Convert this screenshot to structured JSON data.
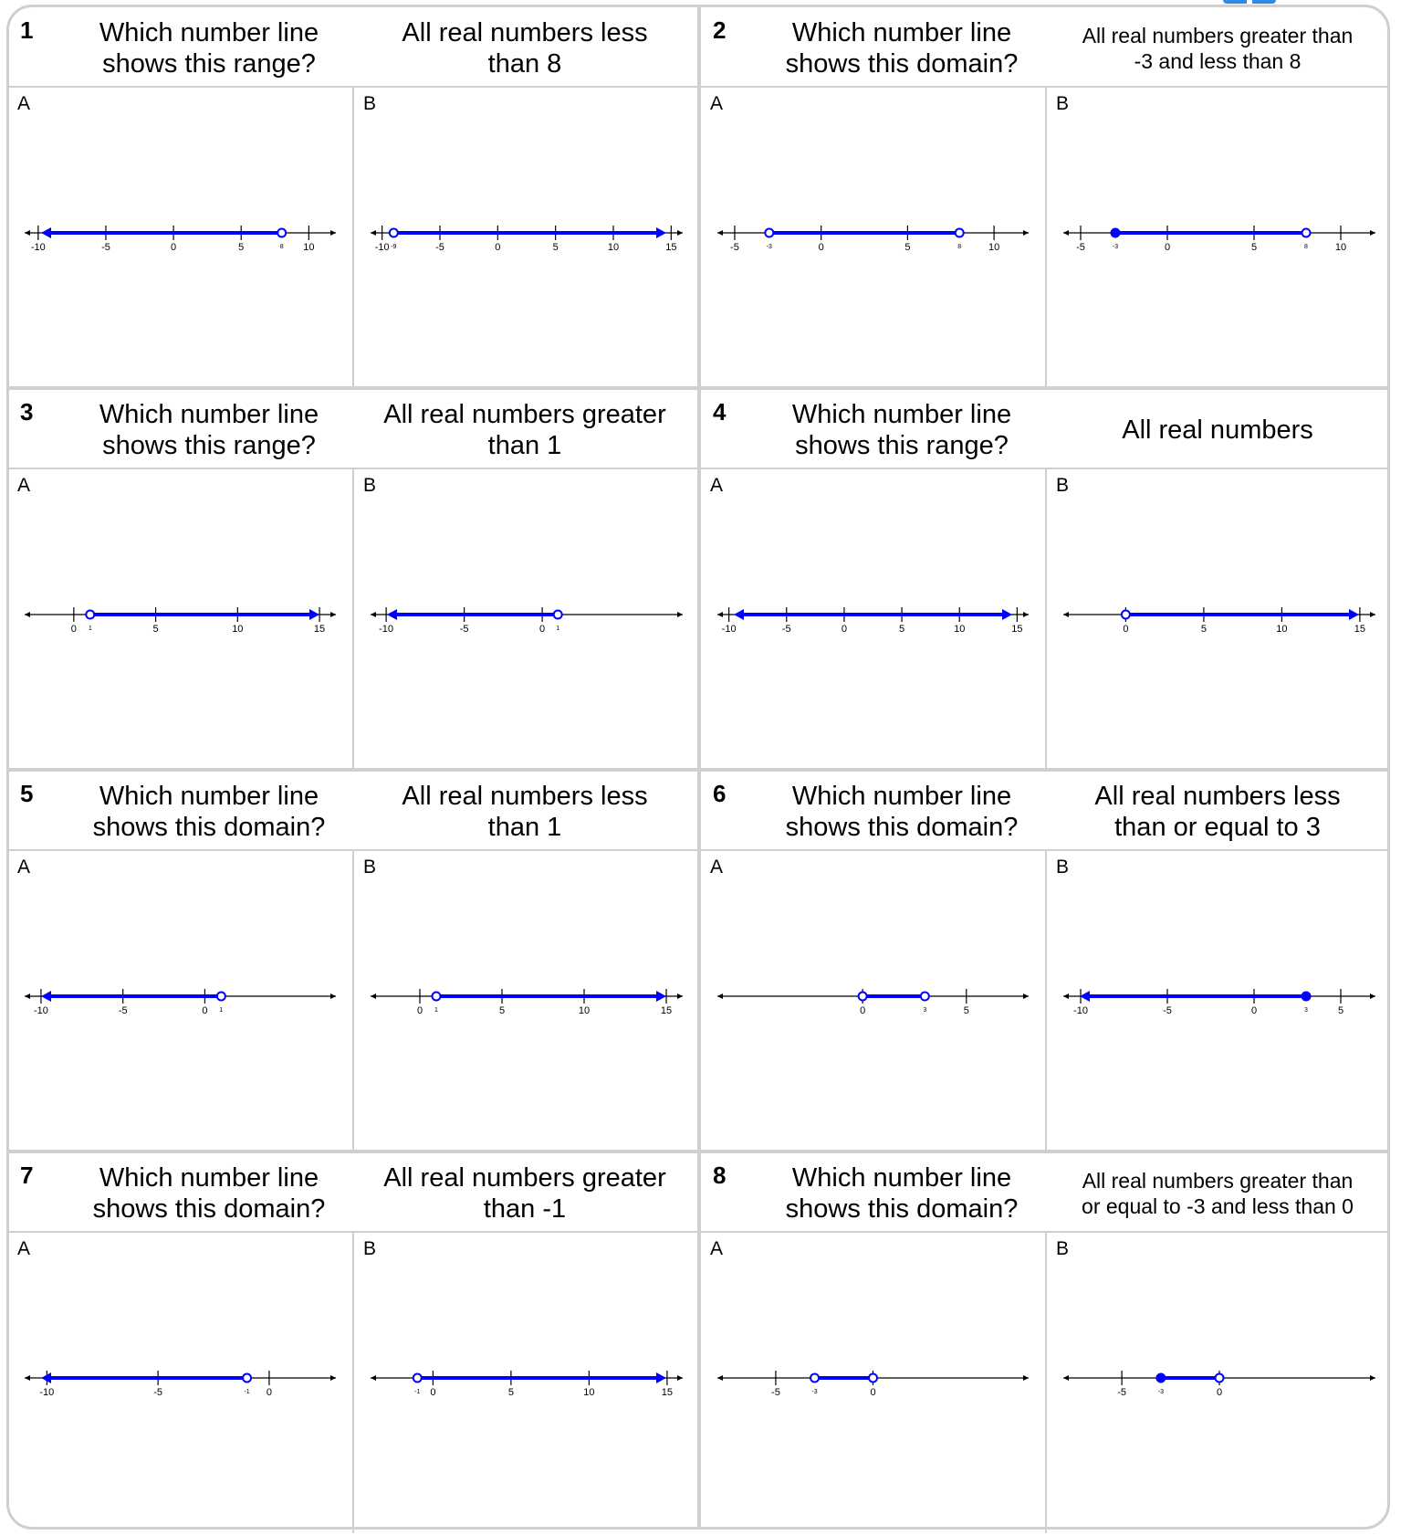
{
  "colors": {
    "line": "#0000ff",
    "axis": "#000000",
    "border": "#cfcfcf"
  },
  "questions": [
    {
      "num": "1",
      "prompt": "Which number line\nshows this range?",
      "desc": "All real numbers less\nthan 8",
      "desc_small": false,
      "options": [
        {
          "label": "A",
          "ticks": [
            -10,
            -5,
            0,
            5,
            10
          ],
          "xmin": -11,
          "xmax": 12,
          "seg": {
            "from": null,
            "to": 8,
            "from_closed": null,
            "to_closed": false
          },
          "extra": [
            {
              "v": 8,
              "t": "8"
            }
          ]
        },
        {
          "label": "B",
          "ticks": [
            -10,
            -5,
            0,
            5,
            10,
            15
          ],
          "xmin": -11,
          "xmax": 16,
          "seg": {
            "from": -9,
            "to": null,
            "from_closed": false,
            "to_closed": null
          },
          "extra": [
            {
              "v": -9,
              "t": "-9"
            }
          ]
        }
      ]
    },
    {
      "num": "2",
      "prompt": "Which number line\nshows this domain?",
      "desc": "All real numbers greater than\n-3 and less than 8",
      "desc_small": true,
      "options": [
        {
          "label": "A",
          "ticks": [
            -5,
            0,
            5,
            10
          ],
          "xmin": -6,
          "xmax": 12,
          "seg": {
            "from": -3,
            "to": 8,
            "from_closed": false,
            "to_closed": false
          },
          "extra": [
            {
              "v": -3,
              "t": "-3"
            },
            {
              "v": 8,
              "t": "8"
            }
          ]
        },
        {
          "label": "B",
          "ticks": [
            -5,
            0,
            5,
            10
          ],
          "xmin": -6,
          "xmax": 12,
          "seg": {
            "from": -3,
            "to": 8,
            "from_closed": true,
            "to_closed": false
          },
          "extra": [
            {
              "v": -3,
              "t": "-3"
            },
            {
              "v": 8,
              "t": "8"
            }
          ]
        }
      ]
    },
    {
      "num": "3",
      "prompt": "Which number line\nshows this range?",
      "desc": "All real numbers greater\nthan 1",
      "desc_small": false,
      "options": [
        {
          "label": "A",
          "ticks": [
            0,
            5,
            10,
            15
          ],
          "xmin": -3,
          "xmax": 16,
          "seg": {
            "from": 1,
            "to": null,
            "from_closed": false,
            "to_closed": null
          },
          "extra": [
            {
              "v": 1,
              "t": "1"
            }
          ]
        },
        {
          "label": "B",
          "ticks": [
            -10,
            -5,
            0
          ],
          "xmin": -11,
          "xmax": 9,
          "seg": {
            "from": null,
            "to": 1,
            "from_closed": null,
            "to_closed": false
          },
          "extra": [
            {
              "v": 1,
              "t": "1"
            }
          ]
        }
      ]
    },
    {
      "num": "4",
      "prompt": "Which number line\nshows this range?",
      "desc": "All real numbers",
      "desc_small": false,
      "options": [
        {
          "label": "A",
          "ticks": [
            -10,
            -5,
            0,
            5,
            10,
            15
          ],
          "xmin": -11,
          "xmax": 16,
          "seg": {
            "from": null,
            "to": null,
            "from_closed": null,
            "to_closed": null
          },
          "extra": []
        },
        {
          "label": "B",
          "ticks": [
            0,
            5,
            10,
            15
          ],
          "xmin": -4,
          "xmax": 16,
          "seg": {
            "from": 0,
            "to": null,
            "from_closed": false,
            "to_closed": null
          },
          "extra": []
        }
      ]
    },
    {
      "num": "5",
      "prompt": "Which number line\nshows this domain?",
      "desc": "All real numbers less\nthan 1",
      "desc_small": false,
      "options": [
        {
          "label": "A",
          "ticks": [
            -10,
            -5,
            0
          ],
          "xmin": -11,
          "xmax": 8,
          "seg": {
            "from": null,
            "to": 1,
            "from_closed": null,
            "to_closed": false
          },
          "extra": [
            {
              "v": 1,
              "t": "1"
            }
          ]
        },
        {
          "label": "B",
          "ticks": [
            0,
            5,
            10,
            15
          ],
          "xmin": -3,
          "xmax": 16,
          "seg": {
            "from": 1,
            "to": null,
            "from_closed": false,
            "to_closed": null
          },
          "extra": [
            {
              "v": 1,
              "t": "1"
            }
          ]
        }
      ]
    },
    {
      "num": "6",
      "prompt": "Which number line\nshows this domain?",
      "desc": "All real numbers less\nthan or equal to 3",
      "desc_small": false,
      "options": [
        {
          "label": "A",
          "ticks": [
            0,
            5
          ],
          "xmin": -7,
          "xmax": 8,
          "seg": {
            "from": 0,
            "to": 3,
            "from_closed": false,
            "to_closed": false
          },
          "extra": [
            {
              "v": 3,
              "t": "3"
            }
          ]
        },
        {
          "label": "B",
          "ticks": [
            -10,
            -5,
            0,
            5
          ],
          "xmin": -11,
          "xmax": 7,
          "seg": {
            "from": null,
            "to": 3,
            "from_closed": null,
            "to_closed": true
          },
          "extra": [
            {
              "v": 3,
              "t": "3"
            }
          ]
        }
      ]
    },
    {
      "num": "7",
      "prompt": "Which number line\nshows this domain?",
      "desc": "All real numbers greater\nthan -1",
      "desc_small": false,
      "options": [
        {
          "label": "A",
          "ticks": [
            -10,
            -5,
            0
          ],
          "xmin": -11,
          "xmax": 3,
          "seg": {
            "from": null,
            "to": -1,
            "from_closed": null,
            "to_closed": false
          },
          "extra": [
            {
              "v": -1,
              "t": "-1"
            }
          ]
        },
        {
          "label": "B",
          "ticks": [
            0,
            5,
            10,
            15
          ],
          "xmin": -4,
          "xmax": 16,
          "seg": {
            "from": -1,
            "to": null,
            "from_closed": false,
            "to_closed": null
          },
          "extra": [
            {
              "v": -1,
              "t": "-1"
            }
          ]
        }
      ]
    },
    {
      "num": "8",
      "prompt": "Which number line\nshows this domain?",
      "desc": "All real numbers greater than\nor equal to -3 and less than 0",
      "desc_small": true,
      "options": [
        {
          "label": "A",
          "ticks": [
            -5,
            0
          ],
          "xmin": -8,
          "xmax": 8,
          "seg": {
            "from": -3,
            "to": 0,
            "from_closed": false,
            "to_closed": false
          },
          "extra": [
            {
              "v": -3,
              "t": "-3"
            }
          ]
        },
        {
          "label": "B",
          "ticks": [
            -5,
            0
          ],
          "xmin": -8,
          "xmax": 8,
          "seg": {
            "from": -3,
            "to": 0,
            "from_closed": true,
            "to_closed": false
          },
          "extra": [
            {
              "v": -3,
              "t": "-3"
            }
          ]
        }
      ]
    }
  ]
}
